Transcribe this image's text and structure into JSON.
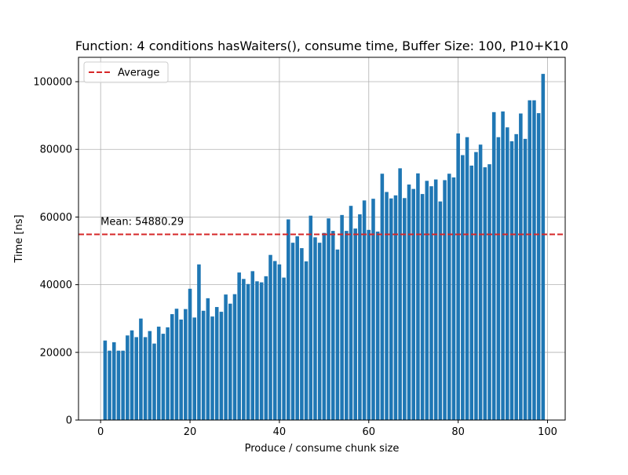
{
  "chart_data": {
    "type": "bar",
    "title": "Function: 4 conditions hasWaiters(), consume time, Buffer Size: 100, P10+K10",
    "xlabel": "Produce / consume chunk size",
    "ylabel": "Time [ns]",
    "xlim": [
      -4.95,
      103.95
    ],
    "ylim": [
      0,
      107200
    ],
    "xticks": [
      0,
      20,
      40,
      60,
      80,
      100
    ],
    "yticks": [
      0,
      20000,
      40000,
      60000,
      80000,
      100000
    ],
    "grid": true,
    "bar_color": "#1f77b4",
    "x": [
      1,
      2,
      3,
      4,
      5,
      6,
      7,
      8,
      9,
      10,
      11,
      12,
      13,
      14,
      15,
      16,
      17,
      18,
      19,
      20,
      21,
      22,
      23,
      24,
      25,
      26,
      27,
      28,
      29,
      30,
      31,
      32,
      33,
      34,
      35,
      36,
      37,
      38,
      39,
      40,
      41,
      42,
      43,
      44,
      45,
      46,
      47,
      48,
      49,
      50,
      51,
      52,
      53,
      54,
      55,
      56,
      57,
      58,
      59,
      60,
      61,
      62,
      63,
      64,
      65,
      66,
      67,
      68,
      69,
      70,
      71,
      72,
      73,
      74,
      75,
      76,
      77,
      78,
      79,
      80,
      81,
      82,
      83,
      84,
      85,
      86,
      87,
      88,
      89,
      90,
      91,
      92,
      93,
      94,
      95,
      96,
      97,
      98,
      99
    ],
    "values": [
      23500,
      20500,
      23000,
      20500,
      20500,
      25000,
      26500,
      24500,
      30000,
      24500,
      26300,
      22600,
      27600,
      25500,
      27400,
      31300,
      32900,
      29700,
      32800,
      38800,
      30300,
      46000,
      32300,
      36000,
      30600,
      33400,
      32000,
      37100,
      34400,
      37200,
      43600,
      41700,
      40200,
      44000,
      41000,
      40700,
      42500,
      48800,
      47000,
      46000,
      42100,
      59300,
      52400,
      54300,
      50800,
      46900,
      60400,
      54000,
      52400,
      55300,
      59600,
      55900,
      50400,
      60600,
      55900,
      63300,
      56600,
      60800,
      64900,
      56200,
      65400,
      55700,
      72800,
      67400,
      65500,
      66400,
      74400,
      65600,
      69600,
      68300,
      72900,
      66800,
      70700,
      69100,
      71100,
      64600,
      70900,
      72800,
      71700,
      84700,
      78300,
      83600,
      75200,
      79200,
      81400,
      74700,
      75600,
      91000,
      83600,
      91200,
      86500,
      82400,
      84500,
      90600,
      83100,
      94500,
      94500,
      90700,
      102300
    ],
    "mean": 54880.29,
    "mean_annotation": "Mean: 54880.29",
    "average_line_color": "#d62728",
    "legend": {
      "position": "top-left",
      "entries": [
        "Average"
      ]
    }
  }
}
